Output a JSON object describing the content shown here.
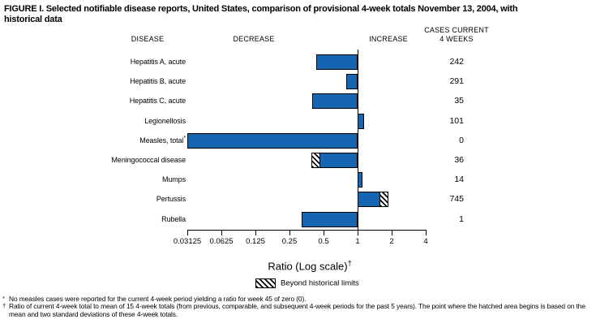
{
  "title": {
    "line1": "FIGURE I. Selected notifiable disease reports, United States, comparison of provisional 4-week totals November 13, 2004, with",
    "line2": "historical data"
  },
  "columns": {
    "disease": "DISEASE",
    "decrease": "DECREASE",
    "increase": "INCREASE",
    "cases_line1": "CASES CURRENT",
    "cases_line2": "4 WEEKS"
  },
  "chart_data": {
    "type": "bar",
    "orientation": "horizontal",
    "scale": "log2",
    "baseline_ratio": 1,
    "xlim": [
      0.03125,
      4
    ],
    "axis": {
      "label": "Ratio (Log scale)",
      "label_superscript": "†",
      "ticks": [
        0.03125,
        0.0625,
        0.125,
        0.25,
        0.5,
        1,
        2,
        4
      ],
      "tick_labels": [
        "0.03125",
        "0.0625",
        "0.125",
        "0.25",
        "0.5",
        "1",
        "2",
        "4"
      ]
    },
    "rows": [
      {
        "disease": "Hepatitis A, acute",
        "sup": "",
        "cases": "242",
        "ratio": 0.43,
        "beyond_from": null
      },
      {
        "disease": "Hepatitis B, acute",
        "sup": "",
        "cases": "291",
        "ratio": 0.79,
        "beyond_from": null
      },
      {
        "disease": "Hepatitis C, acute",
        "sup": "",
        "cases": "35",
        "ratio": 0.4,
        "beyond_from": null
      },
      {
        "disease": "Legionellosis",
        "sup": "",
        "cases": "101",
        "ratio": 1.14,
        "beyond_from": null
      },
      {
        "disease": "Measles, total",
        "sup": "*",
        "cases": "0",
        "ratio": 0,
        "beyond_from": null
      },
      {
        "disease": "Meningococcal disease",
        "sup": "",
        "cases": "36",
        "ratio": 0.39,
        "beyond_from": 0.47
      },
      {
        "disease": "Mumps",
        "sup": "",
        "cases": "14",
        "ratio": 1.1,
        "beyond_from": null
      },
      {
        "disease": "Pertussis",
        "sup": "",
        "cases": "745",
        "ratio": 1.87,
        "beyond_from": 1.56
      },
      {
        "disease": "Rubella",
        "sup": "",
        "cases": "1",
        "ratio": 0.32,
        "beyond_from": null
      }
    ],
    "legend": {
      "label": "Beyond historical limits",
      "swatch": "diagonal-hatch"
    }
  },
  "footnotes": [
    {
      "marker": "*",
      "text": "No measles cases were reported for the current 4-week period yielding a ratio for week 45 of zero (0)."
    },
    {
      "marker": "†",
      "text": "Ratio of current 4-week total to mean of 15 4-week totals (from previous, comparable, and subsequent 4-week periods for the past 5 years). The point where the hatched area begins is based on the mean and two standard deviations of these 4-week totals."
    }
  ],
  "colors": {
    "bar_fill": "#1565b0",
    "bar_border": "#000000",
    "hatch_stripe": "#000000",
    "background": "#ffffff"
  }
}
